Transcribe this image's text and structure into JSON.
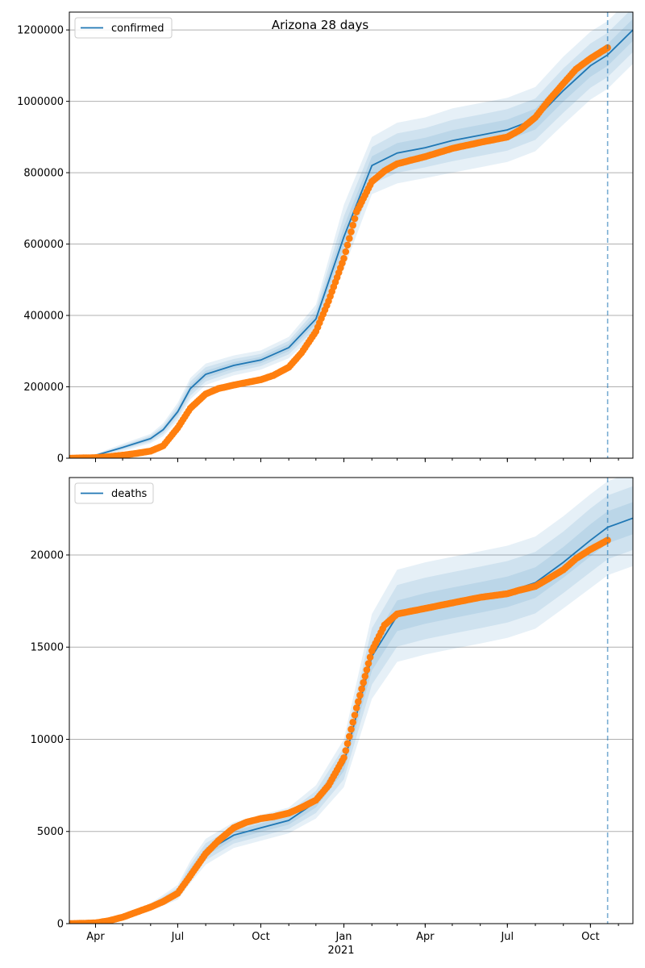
{
  "figure_title": "Arizona 28 days",
  "x_axis": {
    "year_label": "2021",
    "ticks": [
      {
        "label": "Apr",
        "date": "2020-04-01"
      },
      {
        "label": "Jul",
        "date": "2020-07-01"
      },
      {
        "label": "Oct",
        "date": "2020-10-01"
      },
      {
        "label": "Jan",
        "date": "2021-01-01"
      },
      {
        "label": "Apr",
        "date": "2021-04-01"
      },
      {
        "label": "Jul",
        "date": "2021-07-01"
      },
      {
        "label": "Oct",
        "date": "2021-10-01"
      }
    ]
  },
  "colors": {
    "model": "#1f77b4",
    "observed": "#ff7f0e",
    "band": "#1f77b4",
    "forecast_line": "#1f77b4",
    "grid": "#b0b0b0"
  },
  "chart_data": [
    {
      "type": "line",
      "legend": "confirmed",
      "legend_position": "upper-left",
      "grid": "horizontal",
      "xlim": [
        "2020-03-03",
        "2021-11-17"
      ],
      "ylim": [
        0,
        1250000
      ],
      "yticks": [
        {
          "value": 0,
          "label": "0"
        },
        {
          "value": 200000,
          "label": "200000"
        },
        {
          "value": 400000,
          "label": "400000"
        },
        {
          "value": 600000,
          "label": "600000"
        },
        {
          "value": 800000,
          "label": "800000"
        },
        {
          "value": 1000000,
          "label": "1000000"
        },
        {
          "value": 1200000,
          "label": "1200000"
        }
      ],
      "forecast_start": "2021-10-20",
      "model": {
        "x": [
          "2020-03-03",
          "2020-04-01",
          "2020-05-01",
          "2020-06-01",
          "2020-06-15",
          "2020-07-01",
          "2020-07-15",
          "2020-08-01",
          "2020-09-01",
          "2020-10-01",
          "2020-11-01",
          "2020-12-01",
          "2021-01-01",
          "2021-02-01",
          "2021-03-01",
          "2021-04-01",
          "2021-05-01",
          "2021-06-01",
          "2021-07-01",
          "2021-08-01",
          "2021-09-01",
          "2021-10-01",
          "2021-10-20",
          "2021-11-17"
        ],
        "y": [
          0,
          8000,
          30000,
          55000,
          80000,
          130000,
          195000,
          235000,
          260000,
          275000,
          310000,
          390000,
          620000,
          820000,
          855000,
          870000,
          890000,
          905000,
          920000,
          950000,
          1030000,
          1100000,
          1130000,
          1200000
        ]
      },
      "bands": [
        {
          "lower": [
            0,
            4000,
            20000,
            42000,
            62000,
            105000,
            165000,
            205000,
            232000,
            248000,
            280000,
            350000,
            530000,
            740000,
            770000,
            785000,
            800000,
            815000,
            830000,
            860000,
            935000,
            1005000,
            1035000,
            1105000
          ],
          "upper": [
            0,
            12000,
            40000,
            68000,
            98000,
            155000,
            225000,
            265000,
            288000,
            302000,
            340000,
            430000,
            710000,
            900000,
            940000,
            955000,
            980000,
            995000,
            1010000,
            1040000,
            1125000,
            1195000,
            1225000,
            1295000
          ]
        },
        {
          "lower": [
            0,
            5500,
            24000,
            47000,
            69000,
            114000,
            175000,
            215000,
            242000,
            258000,
            291000,
            364000,
            562000,
            768000,
            800000,
            815000,
            832000,
            847000,
            862000,
            892000,
            968000,
            1038000,
            1068000,
            1138000
          ],
          "upper": [
            0,
            10500,
            36000,
            63000,
            91000,
            146000,
            215000,
            255000,
            278000,
            292000,
            329000,
            416000,
            678000,
            872000,
            910000,
            925000,
            948000,
            963000,
            978000,
            1008000,
            1092000,
            1162000,
            1192000,
            1262000
          ]
        },
        {
          "lower": [
            0,
            7000,
            27000,
            51000,
            75000,
            122000,
            185000,
            225000,
            251000,
            266000,
            300000,
            377000,
            591000,
            794000,
            827000,
            842000,
            861000,
            876000,
            891000,
            921000,
            999000,
            1069000,
            1099000,
            1169000
          ],
          "upper": [
            0,
            9000,
            33000,
            59000,
            85000,
            138000,
            205000,
            245000,
            269000,
            284000,
            320000,
            403000,
            649000,
            846000,
            883000,
            898000,
            919000,
            934000,
            949000,
            979000,
            1061000,
            1131000,
            1161000,
            1231000
          ]
        }
      ],
      "observed": {
        "x": [
          "2020-03-03",
          "2020-04-01",
          "2020-04-15",
          "2020-05-01",
          "2020-05-15",
          "2020-06-01",
          "2020-06-15",
          "2020-07-01",
          "2020-07-15",
          "2020-08-01",
          "2020-08-15",
          "2020-09-01",
          "2020-09-15",
          "2020-10-01",
          "2020-10-15",
          "2020-11-01",
          "2020-11-15",
          "2020-12-01",
          "2020-12-15",
          "2021-01-01",
          "2021-01-15",
          "2021-02-01",
          "2021-02-15",
          "2021-03-01",
          "2021-04-01",
          "2021-05-01",
          "2021-06-01",
          "2021-07-01",
          "2021-07-15",
          "2021-08-01",
          "2021-08-15",
          "2021-09-01",
          "2021-09-15",
          "2021-10-01",
          "2021-10-20"
        ],
        "y": [
          0,
          1500,
          4000,
          8500,
          13000,
          20000,
          35000,
          85000,
          140000,
          180000,
          195000,
          205000,
          212000,
          220000,
          232000,
          255000,
          295000,
          355000,
          440000,
          560000,
          690000,
          775000,
          805000,
          825000,
          845000,
          868000,
          885000,
          900000,
          920000,
          955000,
          1000000,
          1050000,
          1090000,
          1120000,
          1150000
        ]
      }
    },
    {
      "type": "line",
      "legend": "deaths",
      "legend_position": "upper-left",
      "grid": "horizontal",
      "xlim": [
        "2020-03-03",
        "2021-11-17"
      ],
      "ylim": [
        0,
        24200
      ],
      "yticks": [
        {
          "value": 0,
          "label": "0"
        },
        {
          "value": 5000,
          "label": "5000"
        },
        {
          "value": 10000,
          "label": "10000"
        },
        {
          "value": 15000,
          "label": "15000"
        },
        {
          "value": 20000,
          "label": "20000"
        }
      ],
      "forecast_start": "2021-10-20",
      "model": {
        "x": [
          "2020-03-03",
          "2020-04-01",
          "2020-05-01",
          "2020-06-01",
          "2020-07-01",
          "2020-07-15",
          "2020-08-01",
          "2020-09-01",
          "2020-10-01",
          "2020-11-01",
          "2020-12-01",
          "2021-01-01",
          "2021-02-01",
          "2021-03-01",
          "2021-04-01",
          "2021-05-01",
          "2021-06-01",
          "2021-07-01",
          "2021-08-01",
          "2021-09-01",
          "2021-10-01",
          "2021-10-20",
          "2021-11-17"
        ],
        "y": [
          0,
          50,
          300,
          900,
          1700,
          2800,
          3900,
          4800,
          5200,
          5600,
          6600,
          8700,
          14500,
          16700,
          17100,
          17400,
          17700,
          18000,
          18500,
          19600,
          20800,
          21500,
          22000
        ]
      },
      "bands": [
        {
          "lower": [
            0,
            20,
            200,
            700,
            1300,
            2200,
            3200,
            4100,
            4500,
            4900,
            5700,
            7400,
            12200,
            14200,
            14600,
            14900,
            15200,
            15500,
            16000,
            17100,
            18200,
            18900,
            19400
          ],
          "upper": [
            0,
            80,
            400,
            1100,
            2100,
            3400,
            4600,
            5500,
            5900,
            6300,
            7500,
            10000,
            16800,
            19200,
            19600,
            19900,
            20200,
            20500,
            21000,
            22100,
            23300,
            24000,
            24500
          ]
        },
        {
          "lower": [
            0,
            30,
            235,
            770,
            1440,
            2410,
            3440,
            4340,
            4740,
            5140,
            6000,
            7830,
            12970,
            15030,
            15430,
            15730,
            16030,
            16330,
            16830,
            17930,
            19070,
            19770,
            20270
          ],
          "upper": [
            0,
            70,
            365,
            1030,
            1960,
            3190,
            4360,
            5260,
            5660,
            6060,
            7200,
            9570,
            16030,
            18370,
            18770,
            19070,
            19370,
            19670,
            20170,
            21270,
            22530,
            23230,
            23730
          ]
        },
        {
          "lower": [
            0,
            40,
            265,
            835,
            1570,
            2600,
            3670,
            4570,
            4970,
            5370,
            6300,
            8270,
            13730,
            15870,
            16270,
            16570,
            16870,
            17170,
            17670,
            18770,
            19930,
            20630,
            21130
          ],
          "upper": [
            0,
            60,
            335,
            965,
            1830,
            3000,
            4130,
            5030,
            5430,
            5830,
            6900,
            9130,
            15270,
            17530,
            17930,
            18230,
            18530,
            18830,
            19330,
            20430,
            21670,
            22370,
            22870
          ]
        }
      ],
      "observed": {
        "x": [
          "2020-03-03",
          "2020-04-01",
          "2020-04-15",
          "2020-05-01",
          "2020-05-15",
          "2020-06-01",
          "2020-06-15",
          "2020-07-01",
          "2020-07-15",
          "2020-08-01",
          "2020-08-15",
          "2020-09-01",
          "2020-09-15",
          "2020-10-01",
          "2020-10-15",
          "2020-11-01",
          "2020-11-15",
          "2020-12-01",
          "2020-12-15",
          "2021-01-01",
          "2021-01-15",
          "2021-02-01",
          "2021-02-15",
          "2021-03-01",
          "2021-04-01",
          "2021-05-01",
          "2021-06-01",
          "2021-07-01",
          "2021-07-15",
          "2021-08-01",
          "2021-08-15",
          "2021-09-01",
          "2021-09-15",
          "2021-10-01",
          "2021-10-20"
        ],
        "y": [
          0,
          40,
          150,
          350,
          600,
          900,
          1200,
          1650,
          2600,
          3800,
          4500,
          5200,
          5500,
          5700,
          5800,
          6000,
          6300,
          6700,
          7500,
          9000,
          11700,
          14800,
          16200,
          16800,
          17100,
          17400,
          17700,
          17900,
          18100,
          18300,
          18700,
          19200,
          19800,
          20300,
          20800
        ]
      }
    }
  ]
}
